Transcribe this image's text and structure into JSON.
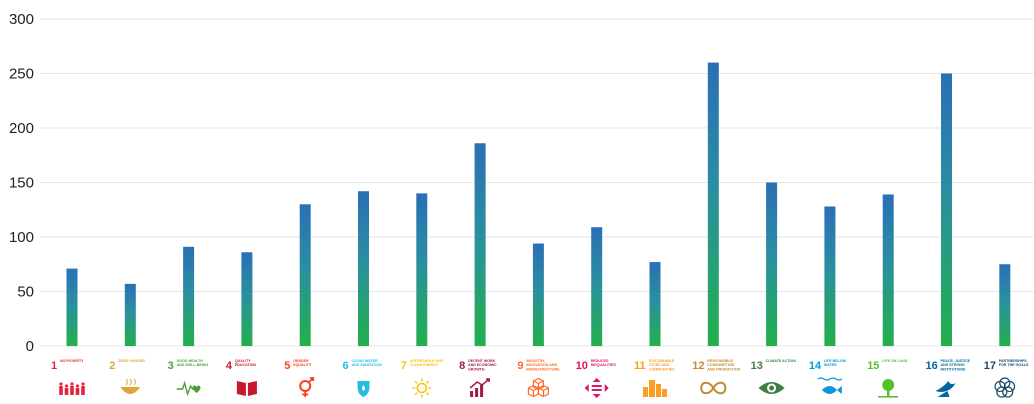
{
  "chart_data": {
    "type": "bar",
    "title": "",
    "xlabel": "",
    "ylabel": "",
    "ylim": [
      0,
      300
    ],
    "yticks": [
      0,
      50,
      100,
      150,
      200,
      250,
      300
    ],
    "grid": true,
    "bar_gradient": {
      "top": "#2a6fb5",
      "bottom": "#22b04b"
    },
    "categories": [
      {
        "number": "1",
        "label": "NO POVERTY",
        "color": "#e5243b",
        "icon": "family-icon"
      },
      {
        "number": "2",
        "label": "ZERO HUNGER",
        "color": "#dda63a",
        "icon": "bowl-icon"
      },
      {
        "number": "3",
        "label": "GOOD HEALTH AND WELL-BEING",
        "color": "#4c9f38",
        "icon": "heartbeat-icon"
      },
      {
        "number": "4",
        "label": "QUALITY EDUCATION",
        "color": "#c5192d",
        "icon": "book-icon"
      },
      {
        "number": "5",
        "label": "GENDER EQUALITY",
        "color": "#ff3a21",
        "icon": "gender-icon"
      },
      {
        "number": "6",
        "label": "CLEAN WATER AND SANITATION",
        "color": "#26bde2",
        "icon": "water-drop-icon"
      },
      {
        "number": "7",
        "label": "AFFORDABLE AND CLEAN ENERGY",
        "color": "#fcc30b",
        "icon": "sun-icon"
      },
      {
        "number": "8",
        "label": "DECENT WORK AND ECONOMIC GROWTH",
        "color": "#a21942",
        "icon": "growth-chart-icon"
      },
      {
        "number": "9",
        "label": "INDUSTRY, INNOVATION AND INFRASTRUCTURE",
        "color": "#fd6925",
        "icon": "cubes-icon"
      },
      {
        "number": "10",
        "label": "REDUCED INEQUALITIES",
        "color": "#dd1367",
        "icon": "equal-arrows-icon"
      },
      {
        "number": "11",
        "label": "SUSTAINABLE CITIES AND COMMUNITIES",
        "color": "#fd9d24",
        "icon": "buildings-icon"
      },
      {
        "number": "12",
        "label": "RESPONSIBLE CONSUMPTION AND PRODUCTION",
        "color": "#bf8b2e",
        "icon": "infinity-icon"
      },
      {
        "number": "13",
        "label": "CLIMATE ACTION",
        "color": "#3f7e44",
        "icon": "eye-globe-icon"
      },
      {
        "number": "14",
        "label": "LIFE BELOW WATER",
        "color": "#0a97d9",
        "icon": "fish-icon"
      },
      {
        "number": "15",
        "label": "LIFE ON LAND",
        "color": "#56c02b",
        "icon": "tree-icon"
      },
      {
        "number": "16",
        "label": "PEACE, JUSTICE AND STRONG INSTITUTIONS",
        "color": "#00689d",
        "icon": "dove-icon"
      },
      {
        "number": "17",
        "label": "PARTNERSHIPS FOR THE GOALS",
        "color": "#19486a",
        "icon": "rings-icon"
      }
    ],
    "values": [
      71,
      57,
      91,
      86,
      130,
      142,
      140,
      186,
      94,
      109,
      77,
      260,
      150,
      128,
      139,
      250,
      75
    ]
  }
}
